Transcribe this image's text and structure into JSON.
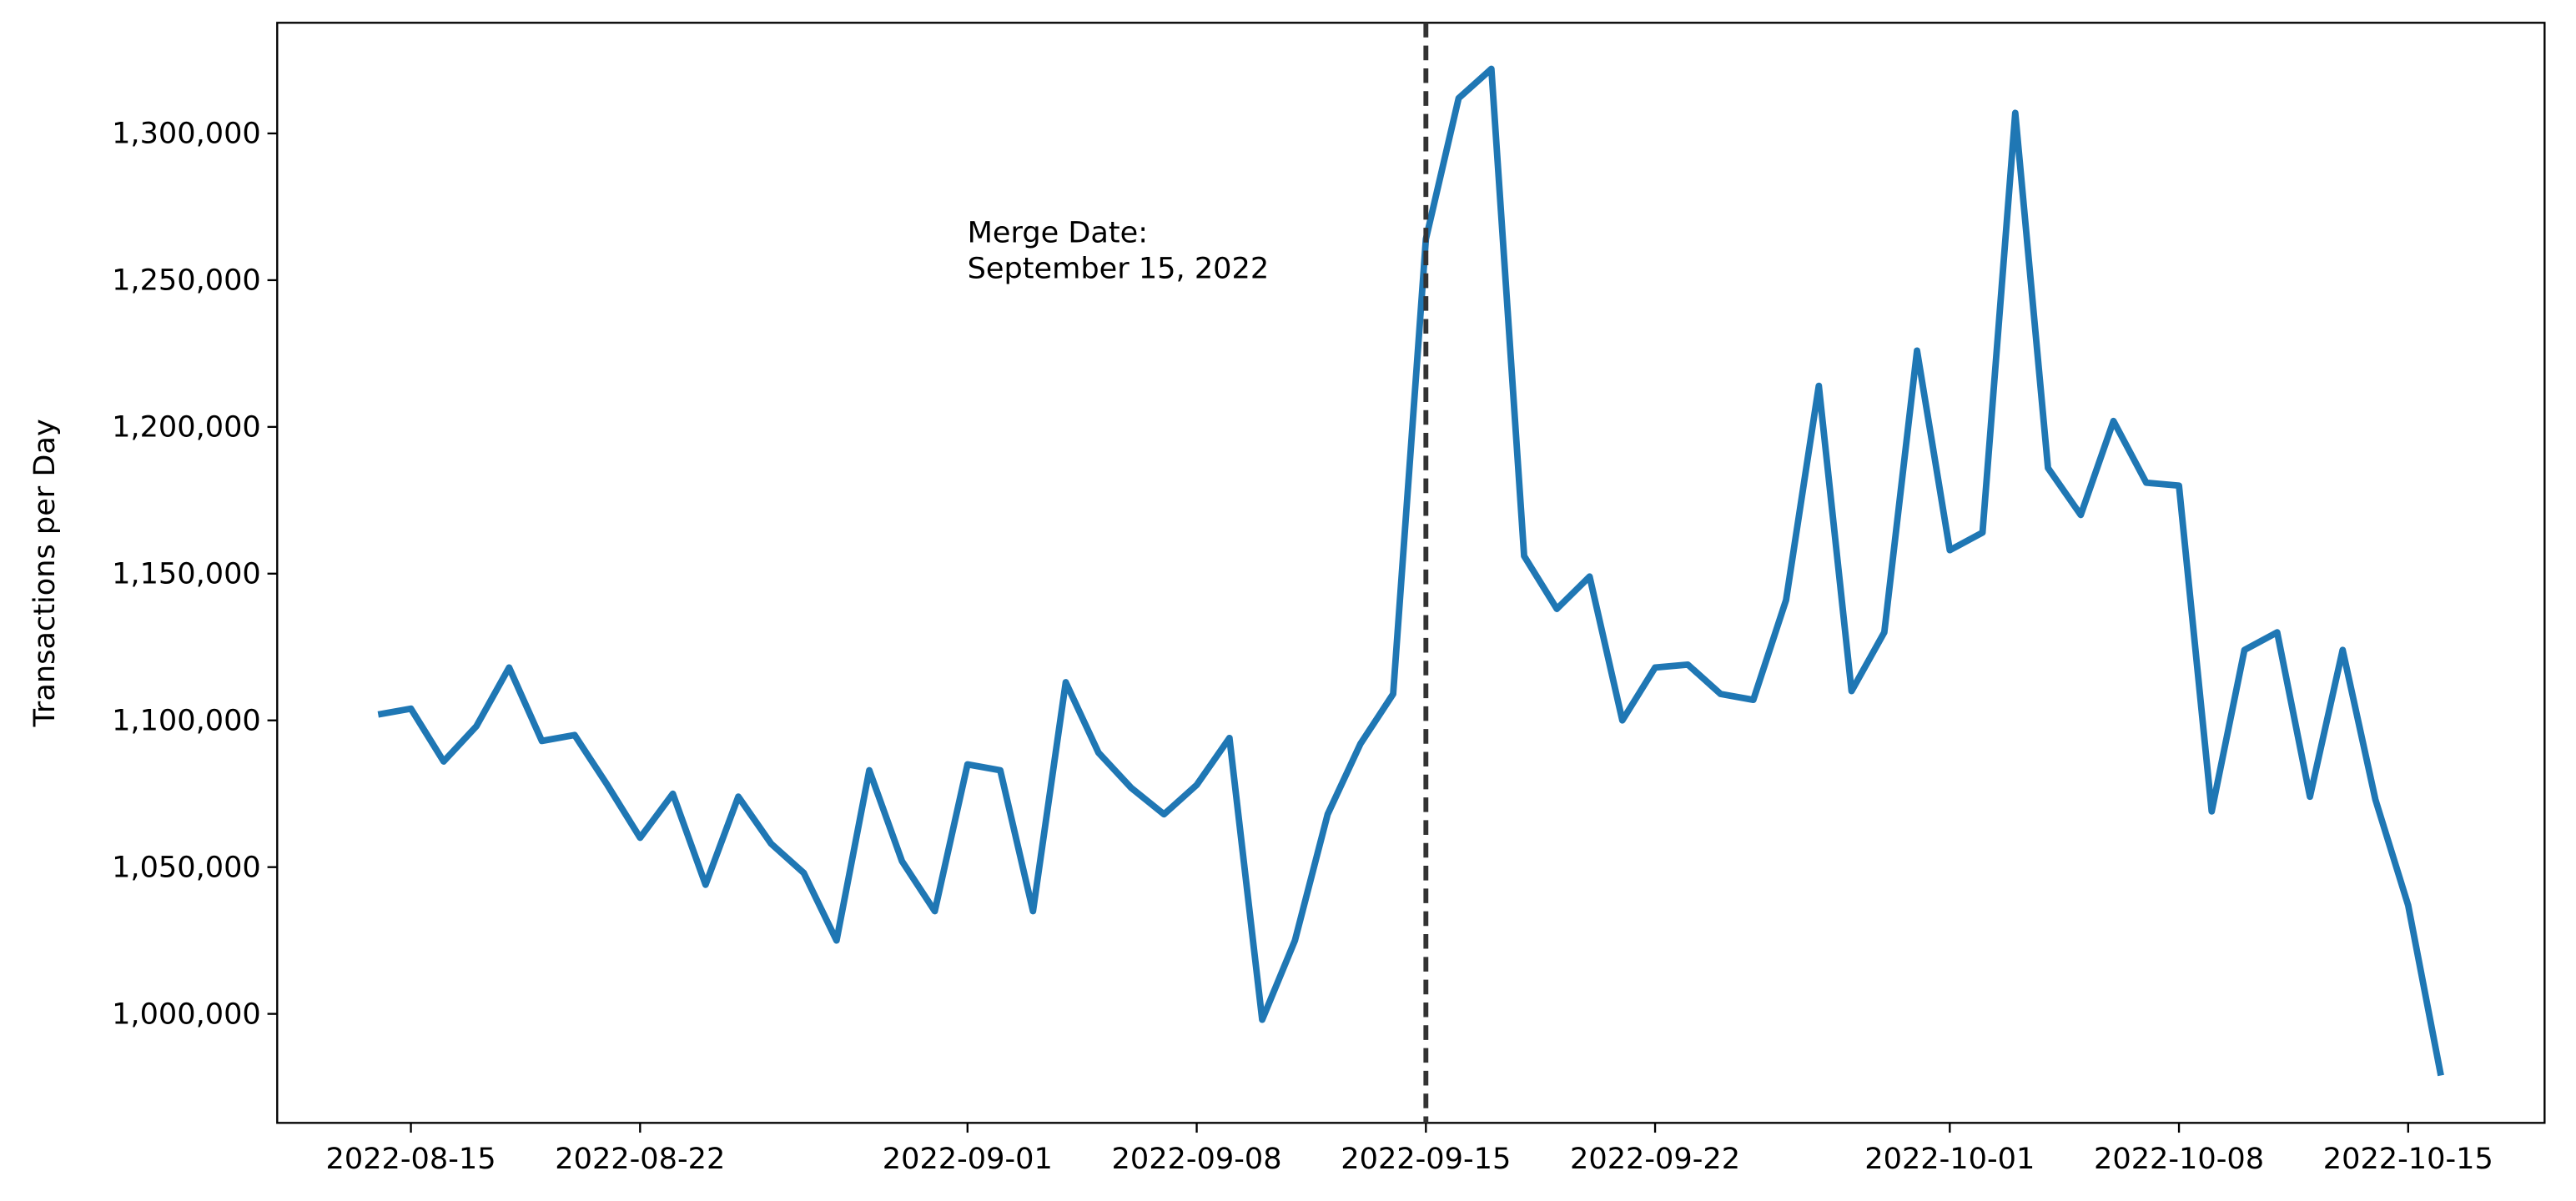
{
  "chart_data": {
    "type": "line",
    "ylabel": "Transactions per Day",
    "x": [
      "2022-08-14",
      "2022-08-15",
      "2022-08-16",
      "2022-08-17",
      "2022-08-18",
      "2022-08-19",
      "2022-08-20",
      "2022-08-21",
      "2022-08-22",
      "2022-08-23",
      "2022-08-24",
      "2022-08-25",
      "2022-08-26",
      "2022-08-27",
      "2022-08-28",
      "2022-08-29",
      "2022-08-30",
      "2022-08-31",
      "2022-09-01",
      "2022-09-02",
      "2022-09-03",
      "2022-09-04",
      "2022-09-05",
      "2022-09-06",
      "2022-09-07",
      "2022-09-08",
      "2022-09-09",
      "2022-09-10",
      "2022-09-11",
      "2022-09-12",
      "2022-09-13",
      "2022-09-14",
      "2022-09-15",
      "2022-09-16",
      "2022-09-17",
      "2022-09-18",
      "2022-09-19",
      "2022-09-20",
      "2022-09-21",
      "2022-09-22",
      "2022-09-23",
      "2022-09-24",
      "2022-09-25",
      "2022-09-26",
      "2022-09-27",
      "2022-09-28",
      "2022-09-29",
      "2022-09-30",
      "2022-10-01",
      "2022-10-02",
      "2022-10-03",
      "2022-10-04",
      "2022-10-05",
      "2022-10-06",
      "2022-10-07",
      "2022-10-08",
      "2022-10-09",
      "2022-10-10",
      "2022-10-11",
      "2022-10-12",
      "2022-10-13",
      "2022-10-14",
      "2022-10-15",
      "2022-10-16"
    ],
    "series": [
      {
        "name": "Transactions per Day",
        "color": "#1f77b4",
        "values": [
          1102000,
          1104000,
          1086000,
          1098000,
          1118000,
          1093000,
          1095000,
          1078000,
          1060000,
          1075000,
          1044000,
          1074000,
          1058000,
          1048000,
          1025000,
          1083000,
          1052000,
          1035000,
          1085000,
          1083000,
          1035000,
          1113000,
          1089000,
          1077000,
          1068000,
          1078000,
          1094000,
          998000,
          1025000,
          1068000,
          1092000,
          1109000,
          1264000,
          1312000,
          1322000,
          1156000,
          1138000,
          1149000,
          1100000,
          1118000,
          1119000,
          1109000,
          1107000,
          1141000,
          1214000,
          1110000,
          1130000,
          1226000,
          1158000,
          1164000,
          1307000,
          1186000,
          1170000,
          1202000,
          1181000,
          1180000,
          1069000,
          1124000,
          1130000,
          1074000,
          1124000,
          1073000,
          1037000,
          979000
        ]
      }
    ],
    "xlim": [
      "2022-08-10T22:00",
      "2022-10-19T04:00"
    ],
    "xticks": [
      "2022-08-15",
      "2022-08-22",
      "2022-09-01",
      "2022-09-08",
      "2022-09-15",
      "2022-09-22",
      "2022-10-01",
      "2022-10-08",
      "2022-10-15"
    ],
    "ylim": [
      962850,
      1337700
    ],
    "yticks": [
      {
        "value": 1000000,
        "label": "1,000,000"
      },
      {
        "value": 1050000,
        "label": "1,050,000"
      },
      {
        "value": 1100000,
        "label": "1,100,000"
      },
      {
        "value": 1150000,
        "label": "1,150,000"
      },
      {
        "value": 1200000,
        "label": "1,200,000"
      },
      {
        "value": 1250000,
        "label": "1,250,000"
      },
      {
        "value": 1300000,
        "label": "1,300,000"
      }
    ],
    "vline": "2022-09-15",
    "annotation": [
      "Merge Date:",
      "September 15, 2022"
    ]
  }
}
